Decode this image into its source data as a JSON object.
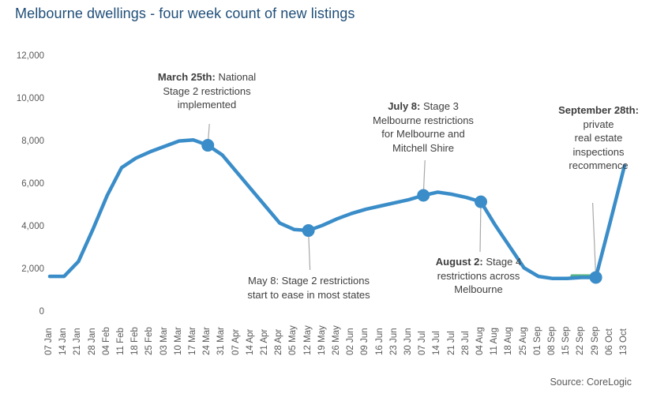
{
  "title": "Melbourne dwellings - four week count of new listings",
  "source_label": "Source: CoreLogic",
  "colors": {
    "line_blue": "#3a8dc8",
    "marker_blue": "#3a8dc8",
    "highlight_green": "#54b483",
    "title_blue": "#1f4e79",
    "axis_text_gray": "#595959",
    "annotation_text": "#404040",
    "leader_gray": "#a8a8a8"
  },
  "chart_data": {
    "type": "line",
    "title": "Melbourne dwellings - four week count of new listings",
    "xlabel": "",
    "ylabel": "",
    "ylim": [
      0,
      12000
    ],
    "grid": false,
    "legend": "none",
    "y_tick_labels": [
      "0",
      "2,000",
      "4,000",
      "6,000",
      "8,000",
      "10,000",
      "12,000"
    ],
    "y_tick_values": [
      0,
      2000,
      4000,
      6000,
      8000,
      10000,
      12000
    ],
    "categories": [
      "07 Jan",
      "14 Jan",
      "21 Jan",
      "28 Jan",
      "04 Feb",
      "11 Feb",
      "18 Feb",
      "25 Feb",
      "03 Mar",
      "10 Mar",
      "17 Mar",
      "24 Mar",
      "31 Mar",
      "07 Apr",
      "14 Apr",
      "21 Apr",
      "28 Apr",
      "05 May",
      "12 May",
      "19 May",
      "26 May",
      "02 Jun",
      "09 Jun",
      "16 Jun",
      "23 Jun",
      "30 Jun",
      "07 Jul",
      "14 Jul",
      "21 Jul",
      "28 Jul",
      "04 Aug",
      "11 Aug",
      "18 Aug",
      "25 Aug",
      "01 Sep",
      "08 Sep",
      "15 Sep",
      "22 Sep",
      "29 Sep",
      "06 Oct",
      "13 Oct"
    ],
    "values": [
      1700,
      1700,
      2400,
      3900,
      5500,
      6800,
      7250,
      7550,
      7800,
      8050,
      8100,
      7850,
      7400,
      6600,
      5800,
      5000,
      4200,
      3900,
      3850,
      4100,
      4400,
      4650,
      4850,
      5000,
      5150,
      5300,
      5500,
      5650,
      5550,
      5400,
      5200,
      4100,
      3100,
      2100,
      1700,
      1600,
      1600,
      1650,
      1650,
      4250,
      6900
    ],
    "marker_indices": [
      11,
      18,
      26,
      30,
      38
    ],
    "highlight_segment": {
      "from_index": 37,
      "to_index": 38,
      "color_key": "highlight_green"
    }
  },
  "annotations": [
    {
      "id": "march-25",
      "bold_prefix": "March 25th:",
      "lines": [
        "March 25th: National",
        "Stage 2 restrictions",
        "implemented"
      ],
      "target_category": "24 Mar",
      "placement": "above"
    },
    {
      "id": "may-8",
      "bold_prefix": "",
      "lines": [
        "May 8: Stage 2 restrictions",
        "start to ease in most states"
      ],
      "target_category": "12 May",
      "placement": "below"
    },
    {
      "id": "july-8",
      "bold_prefix": "July 8:",
      "lines": [
        "July 8: Stage 3",
        "Melbourne restrictions",
        "for Melbourne and",
        "Mitchell Shire"
      ],
      "target_category": "07 Jul",
      "placement": "above"
    },
    {
      "id": "august-2",
      "bold_prefix": "August 2:",
      "lines": [
        "August 2: Stage 4",
        "restrictions across",
        "Melbourne"
      ],
      "target_category": "04 Aug",
      "placement": "below"
    },
    {
      "id": "september-28",
      "bold_prefix": "September 28th:",
      "lines": [
        "September 28th:",
        "private",
        "real estate",
        "inspections",
        "recommence"
      ],
      "target_category": "29 Sep",
      "placement": "above"
    }
  ]
}
